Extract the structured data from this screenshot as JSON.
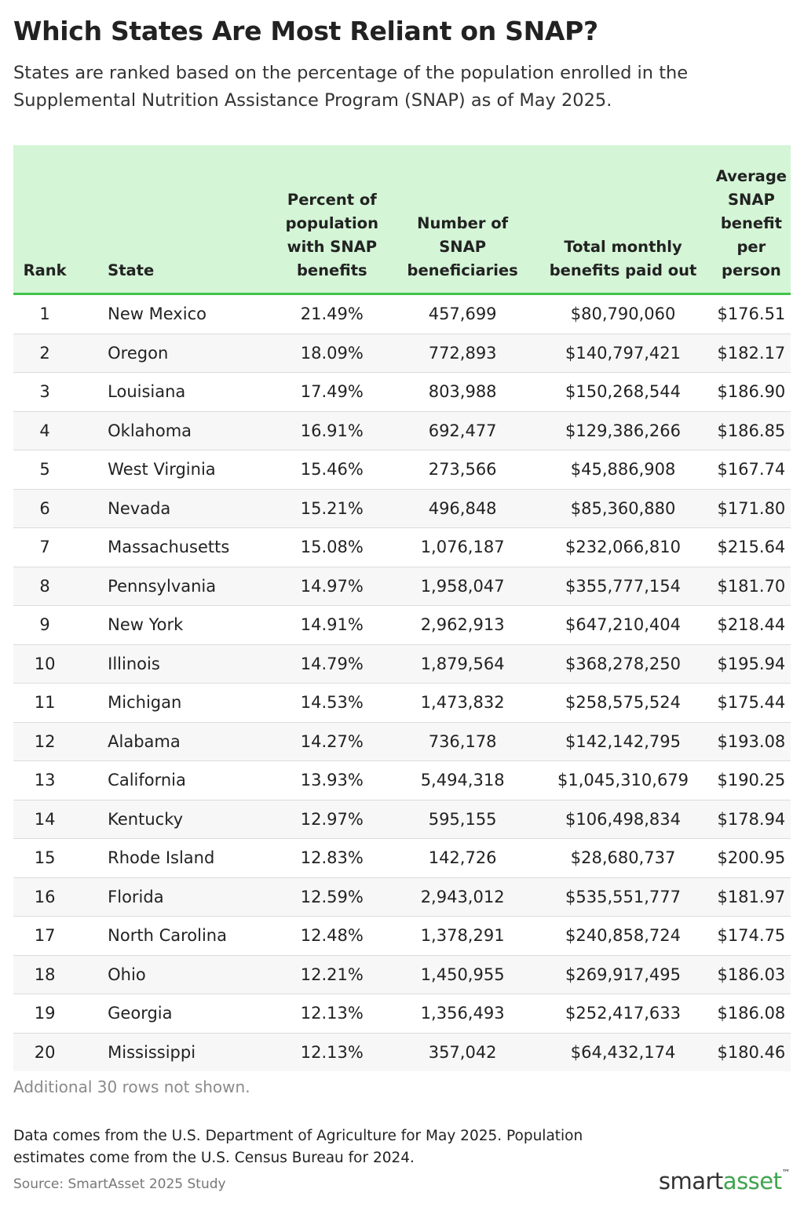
{
  "title": "Which States Are Most Reliant on SNAP?",
  "subtitle": "States are ranked based on the percentage of the population enrolled in the Supplemental Nutrition Assistance Program (SNAP) as of May 2025.",
  "colors": {
    "header_bg": "#d4f5d6",
    "header_rule": "#3fc34a",
    "brand_green": "#3fa34d"
  },
  "chart_data": {
    "type": "table",
    "title": "Which States Are Most Reliant on SNAP?",
    "columns": [
      "Rank",
      "State",
      "Percent of population with SNAP benefits",
      "Number of SNAP beneficiaries",
      "Total monthly benefits paid out",
      "Average SNAP benefit per person"
    ],
    "rows": [
      [
        "1",
        "New Mexico",
        "21.49%",
        "457,699",
        "$80,790,060",
        "$176.51"
      ],
      [
        "2",
        "Oregon",
        "18.09%",
        "772,893",
        "$140,797,421",
        "$182.17"
      ],
      [
        "3",
        "Louisiana",
        "17.49%",
        "803,988",
        "$150,268,544",
        "$186.90"
      ],
      [
        "4",
        "Oklahoma",
        "16.91%",
        "692,477",
        "$129,386,266",
        "$186.85"
      ],
      [
        "5",
        "West Virginia",
        "15.46%",
        "273,566",
        "$45,886,908",
        "$167.74"
      ],
      [
        "6",
        "Nevada",
        "15.21%",
        "496,848",
        "$85,360,880",
        "$171.80"
      ],
      [
        "7",
        "Massachusetts",
        "15.08%",
        "1,076,187",
        "$232,066,810",
        "$215.64"
      ],
      [
        "8",
        "Pennsylvania",
        "14.97%",
        "1,958,047",
        "$355,777,154",
        "$181.70"
      ],
      [
        "9",
        "New York",
        "14.91%",
        "2,962,913",
        "$647,210,404",
        "$218.44"
      ],
      [
        "10",
        "Illinois",
        "14.79%",
        "1,879,564",
        "$368,278,250",
        "$195.94"
      ],
      [
        "11",
        "Michigan",
        "14.53%",
        "1,473,832",
        "$258,575,524",
        "$175.44"
      ],
      [
        "12",
        "Alabama",
        "14.27%",
        "736,178",
        "$142,142,795",
        "$193.08"
      ],
      [
        "13",
        "California",
        "13.93%",
        "5,494,318",
        "$1,045,310,679",
        "$190.25"
      ],
      [
        "14",
        "Kentucky",
        "12.97%",
        "595,155",
        "$106,498,834",
        "$178.94"
      ],
      [
        "15",
        "Rhode Island",
        "12.83%",
        "142,726",
        "$28,680,737",
        "$200.95"
      ],
      [
        "16",
        "Florida",
        "12.59%",
        "2,943,012",
        "$535,551,777",
        "$181.97"
      ],
      [
        "17",
        "North Carolina",
        "12.48%",
        "1,378,291",
        "$240,858,724",
        "$174.75"
      ],
      [
        "18",
        "Ohio",
        "12.21%",
        "1,450,955",
        "$269,917,495",
        "$186.03"
      ],
      [
        "19",
        "Georgia",
        "12.13%",
        "1,356,493",
        "$252,417,633",
        "$186.08"
      ],
      [
        "20",
        "Mississippi",
        "12.13%",
        "357,042",
        "$64,432,174",
        "$180.46"
      ]
    ]
  },
  "rows_note": "Additional 30 rows not shown.",
  "footnote": "Data comes from the U.S. Department of Agriculture for May 2025. Population estimates come from the U.S. Census Bureau for 2024.",
  "source": "Source: SmartAsset 2025 Study",
  "logo": {
    "part1": "smart",
    "part2": "asset",
    "tm": "™"
  }
}
